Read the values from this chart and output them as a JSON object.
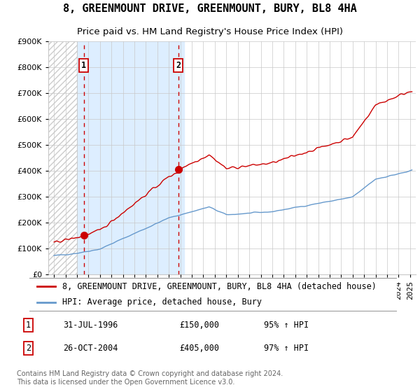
{
  "title": "8, GREENMOUNT DRIVE, GREENMOUNT, BURY, BL8 4HA",
  "subtitle": "Price paid vs. HM Land Registry's House Price Index (HPI)",
  "red_label": "8, GREENMOUNT DRIVE, GREENMOUNT, BURY, BL8 4HA (detached house)",
  "blue_label": "HPI: Average price, detached house, Bury",
  "annotation1_date": "31-JUL-1996",
  "annotation1_price": "£150,000",
  "annotation1_hpi": "95% ↑ HPI",
  "annotation2_date": "26-OCT-2004",
  "annotation2_price": "£405,000",
  "annotation2_hpi": "97% ↑ HPI",
  "footer": "Contains HM Land Registry data © Crown copyright and database right 2024.\nThis data is licensed under the Open Government Licence v3.0.",
  "point1_x": 1996.58,
  "point1_y": 150000,
  "point2_x": 2004.82,
  "point2_y": 405000,
  "ylim": [
    0,
    900000
  ],
  "xlim_left": 1993.5,
  "xlim_right": 2025.5,
  "hatch_region_end": 1996.0,
  "shaded_region_start": 1996.0,
  "shaded_region_end": 2005.3,
  "background_color": "#ffffff",
  "shaded_color": "#ddeeff",
  "hatch_color": "#cccccc",
  "red_color": "#cc0000",
  "blue_color": "#6699cc",
  "grid_color": "#c8c8c8",
  "title_fontsize": 11,
  "subtitle_fontsize": 9.5,
  "tick_fontsize": 8,
  "legend_fontsize": 8.5,
  "annot_fontsize": 8.5,
  "footer_fontsize": 7
}
